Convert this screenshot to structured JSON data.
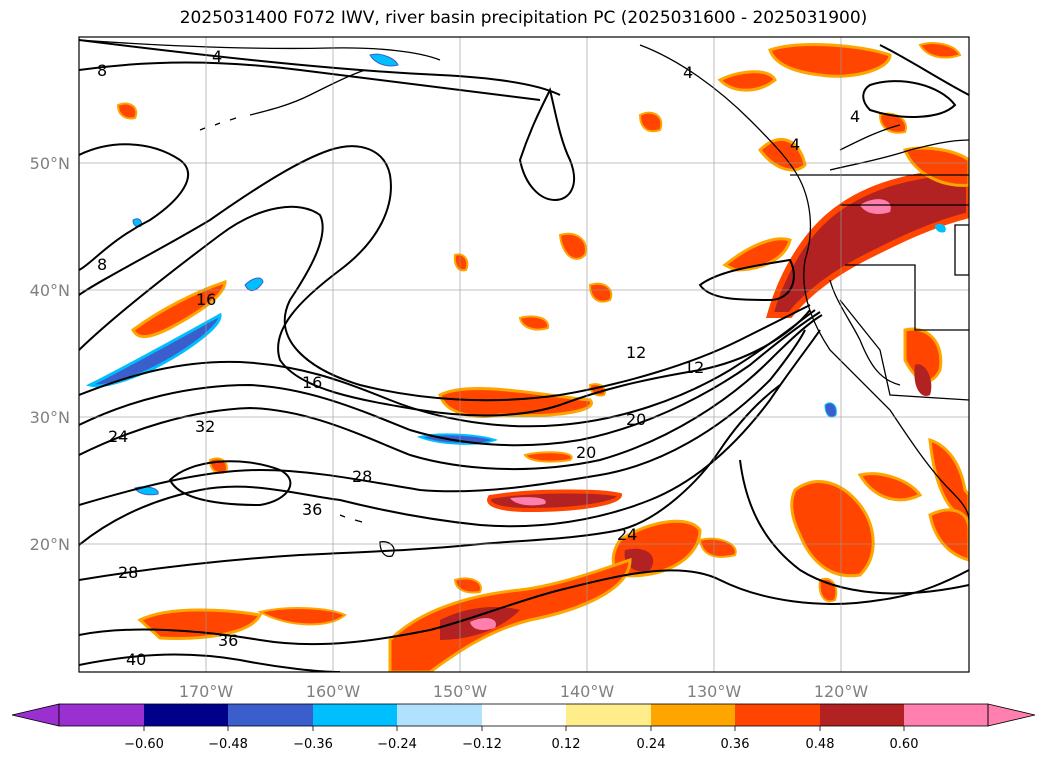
{
  "title": "2025031400 F072 IWV, river basin precipitation PC (2025031600 - 2025031900)",
  "axes": {
    "lat_ticks": [
      {
        "value": 50,
        "label": "50°N"
      },
      {
        "value": 40,
        "label": "40°N"
      },
      {
        "value": 30,
        "label": "30°N"
      },
      {
        "value": 20,
        "label": "20°N"
      }
    ],
    "lon_ticks": [
      {
        "value": -170,
        "label": "170°W"
      },
      {
        "value": -160,
        "label": "160°W"
      },
      {
        "value": -150,
        "label": "150°W"
      },
      {
        "value": -140,
        "label": "140°W"
      },
      {
        "value": -130,
        "label": "130°W"
      },
      {
        "value": -120,
        "label": "120°W"
      }
    ],
    "lat_range": [
      10,
      60
    ],
    "lon_range": [
      -180,
      -110
    ],
    "grid": true
  },
  "contour_labels": [
    "4",
    "4",
    "4",
    "4",
    "8",
    "8",
    "16",
    "16",
    "12",
    "12",
    "24",
    "32",
    "28",
    "36",
    "20",
    "20",
    "24",
    "28",
    "36",
    "40"
  ],
  "colorbar": {
    "tick_labels": [
      "−0.60",
      "−0.48",
      "−0.36",
      "−0.24",
      "−0.12",
      "0.12",
      "0.24",
      "0.36",
      "0.48",
      "0.60"
    ],
    "ticks": [
      -0.6,
      -0.48,
      -0.36,
      -0.24,
      -0.12,
      0.12,
      0.24,
      0.36,
      0.48,
      0.6
    ],
    "colors": [
      "#9b30d0",
      "#00008b",
      "#3a5fcd",
      "#00bfff",
      "#b0e2ff",
      "#ffffff",
      "#ffec8b",
      "#ffa500",
      "#ff4500",
      "#b22222",
      "#ff7fae"
    ],
    "extend": "both"
  },
  "palette": {
    "orange_light": "#ffa500",
    "red_orange": "#ff4500",
    "dark_red": "#b22222",
    "pink": "#ff7fae",
    "blue_light": "#00bfff",
    "blue_mid": "#3a5fcd",
    "yellow": "#ffec8b"
  }
}
